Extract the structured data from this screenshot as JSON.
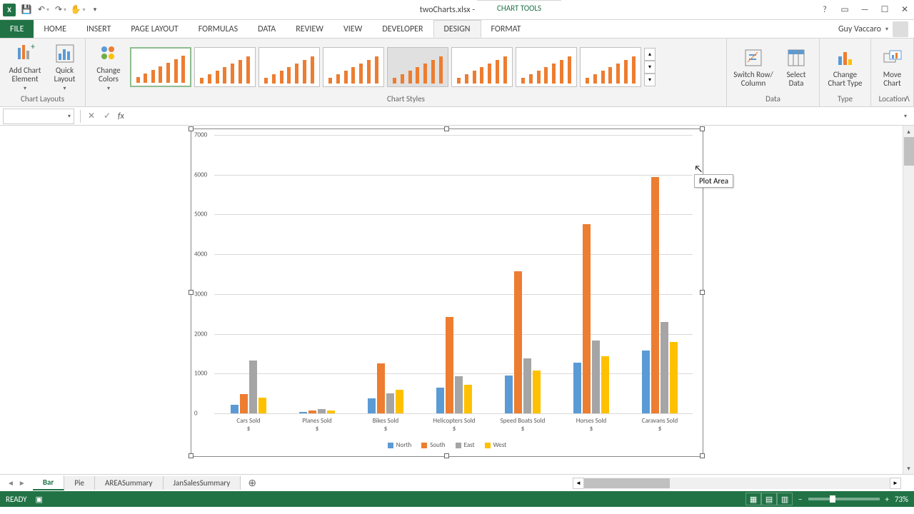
{
  "app": {
    "title": "twoCharts.xlsx - Excel",
    "context_tab": "CHART TOOLS",
    "user_name": "Guy Vaccaro"
  },
  "tabs": {
    "file": "FILE",
    "list": [
      "HOME",
      "INSERT",
      "PAGE LAYOUT",
      "FORMULAS",
      "DATA",
      "REVIEW",
      "VIEW",
      "DEVELOPER"
    ],
    "context": [
      "DESIGN",
      "FORMAT"
    ],
    "active": "DESIGN"
  },
  "ribbon": {
    "add_chart_element": "Add Chart\nElement",
    "quick_layout": "Quick\nLayout",
    "change_colors": "Change\nColors",
    "switch_row_col": "Switch Row/\nColumn",
    "select_data": "Select\nData",
    "change_chart_type": "Change\nChart Type",
    "move_chart": "Move\nChart",
    "groups": {
      "layouts": "Chart Layouts",
      "styles": "Chart Styles",
      "data": "Data",
      "type": "Type",
      "location": "Location"
    }
  },
  "tooltip": "Plot Area",
  "chart": {
    "ylim": [
      0,
      7000
    ],
    "ytick_step": 1000,
    "yticks": [
      0,
      1000,
      2000,
      3000,
      4000,
      5000,
      6000,
      7000
    ],
    "categories": [
      "Cars Sold",
      "Planes Sold",
      "Bikes Sold",
      "Helicopters Sold",
      "Speed Boats Sold",
      "Horses Sold",
      "Caravans Sold"
    ],
    "sub_label": "$",
    "series_names": [
      "North",
      "South",
      "East",
      "West"
    ],
    "series_colors": [
      "#5b9bd5",
      "#ed7d31",
      "#a5a5a5",
      "#ffc000"
    ],
    "grid_color": "#d9d9d9",
    "data": {
      "North": [
        220,
        40,
        375,
        650,
        960,
        1275,
        1575
      ],
      "South": [
        480,
        70,
        1250,
        2420,
        3580,
        4750,
        5940
      ],
      "East": [
        1330,
        100,
        500,
        930,
        1380,
        1830,
        2290
      ],
      "West": [
        390,
        70,
        600,
        720,
        1080,
        1440,
        1800
      ]
    }
  },
  "sheet_tabs": [
    "Bar",
    "Pie",
    "AREASummary",
    "JanSalesSummary"
  ],
  "active_sheet": "Bar",
  "status": {
    "ready": "READY",
    "zoom": "73%"
  }
}
